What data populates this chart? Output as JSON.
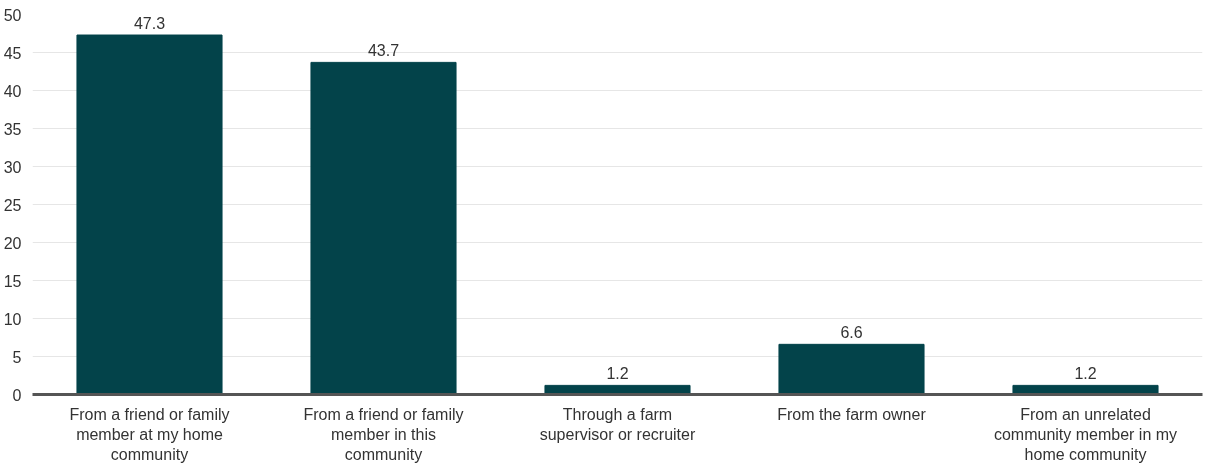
{
  "chart_data": {
    "type": "bar",
    "categories": [
      "From a friend or family member at my home community",
      "From a friend or family member in this community",
      "Through a farm supervisor or recruiter",
      "From the farm owner",
      "From an unrelated community member in my home community"
    ],
    "values": [
      47.3,
      43.7,
      1.2,
      6.6,
      1.2
    ],
    "color": "#03434a",
    "ylim": [
      0,
      50
    ],
    "yticks": [
      0,
      5,
      10,
      15,
      20,
      25,
      30,
      35,
      40,
      45,
      50
    ],
    "grid": "y",
    "data_labels": true
  }
}
